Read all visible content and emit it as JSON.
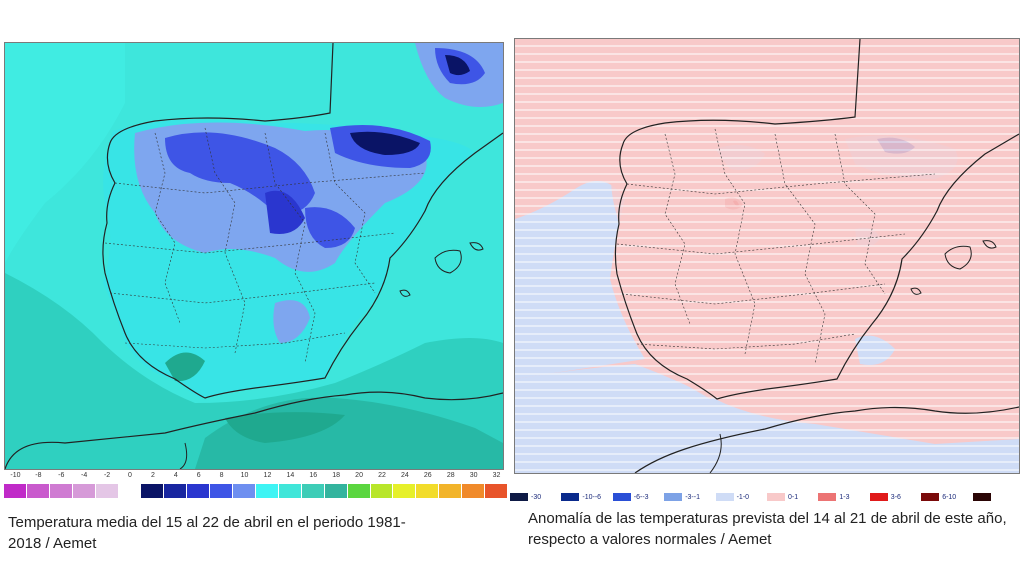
{
  "left_panel": {
    "scale_labels": [
      "-10",
      "-8",
      "-6",
      "-4",
      "-2",
      "0",
      "2",
      "4",
      "6",
      "8",
      "10",
      "12",
      "14",
      "16",
      "18",
      "20",
      "22",
      "24",
      "26",
      "28",
      "30",
      "32"
    ],
    "scale_colors": [
      "#c02ac8",
      "#c95acd",
      "#cf7bd2",
      "#d69ad8",
      "#e4c6e6",
      "#ffffff",
      "#0a1466",
      "#1826a0",
      "#2a36cf",
      "#3e55e6",
      "#6e8ff0",
      "#3ef4f4",
      "#40e6d9",
      "#3dcdb7",
      "#33b49e",
      "#5bd640",
      "#b8e62a",
      "#e6f02a",
      "#f2dc2a",
      "#f2b42a",
      "#f08a2a",
      "#e8542a"
    ],
    "caption": "Temperatura media del 15 al 22 de abril en el periodo 1981-2018 / Aemet"
  },
  "right_panel": {
    "legend": [
      {
        "label": "-30",
        "color": "#0e1a45"
      },
      {
        "label": "-10--6",
        "color": "#0a2a8c"
      },
      {
        "label": "-6--3",
        "color": "#2a4fd6"
      },
      {
        "label": "-3--1",
        "color": "#7da2e6"
      },
      {
        "label": "-1-0",
        "color": "#cfdcf6"
      },
      {
        "label": "0-1",
        "color": "#f8c9c9"
      },
      {
        "label": "1-3",
        "color": "#ec7474"
      },
      {
        "label": "3-6",
        "color": "#e01a1a"
      },
      {
        "label": "6-10",
        "color": "#7a0a0a"
      },
      {
        "label": "",
        "color": "#2a0505"
      }
    ],
    "caption": "Anomalía de las temperaturas prevista del 14 al 21 de abril de este año, respecto a valores normales / Aemet"
  }
}
